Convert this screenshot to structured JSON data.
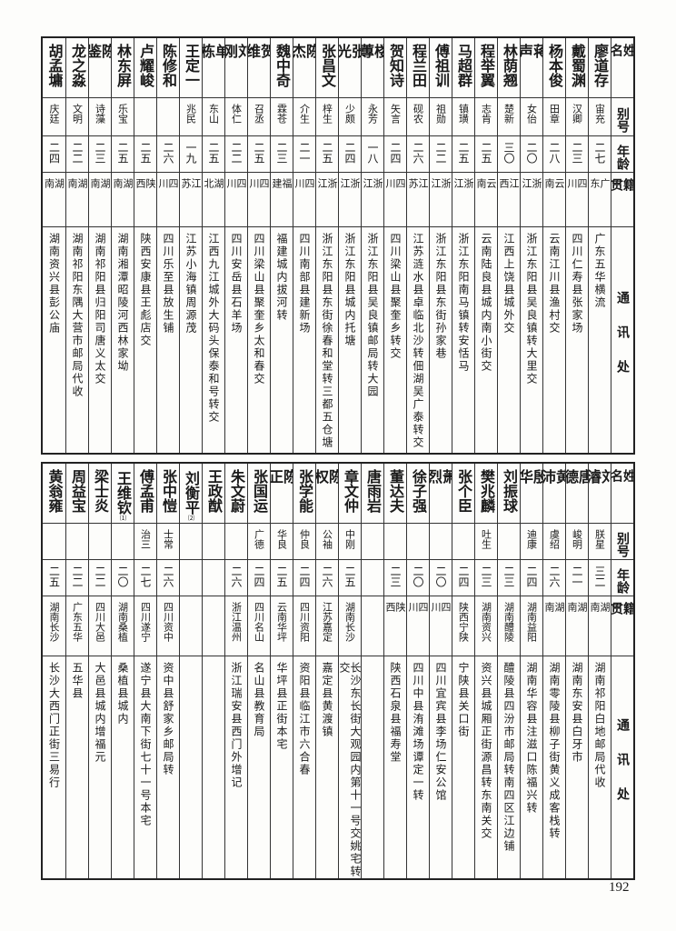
{
  "header": {
    "name": "姓名",
    "alias": "别号",
    "age": "年龄",
    "origin": "籍贯",
    "address": "通讯处"
  },
  "top_table": [
    {
      "name": "廖道存",
      "alias": "宙充",
      "age": "二七",
      "origin": "广东",
      "address": "广东五华横流"
    },
    {
      "name": "戴蜀渊",
      "alias": "汉卿",
      "age": "二三",
      "origin": "四川",
      "address": "四川仁寿县张家场"
    },
    {
      "name": "杨本俊",
      "alias": "田章",
      "age": "二八",
      "origin": "云南",
      "address": "云南江川县渔村交"
    },
    {
      "name": "蒋声",
      "alias": "女佁",
      "age": "二〇",
      "origin": "浙江",
      "address": "浙江东阳县吴良镇转大里交"
    },
    {
      "name": "林荫翘",
      "alias": "楚新",
      "age": "三〇",
      "origin": "江西",
      "address": "江西上饶县城外交"
    },
    {
      "name": "程举翼",
      "alias": "志肯",
      "age": "二五",
      "origin": "云南",
      "address": "云南陆良县城内南小街交"
    },
    {
      "name": "马超群",
      "alias": "镇璜",
      "age": "二五",
      "origin": "浙江",
      "address": "浙江东阳南马镇转安恬马"
    },
    {
      "name": "傅祖训",
      "alias": "祖勋",
      "age": "二二",
      "origin": "浙江",
      "address": "浙江东阳县东街孙家巷"
    },
    {
      "name": "程兰田",
      "alias": "砚农",
      "age": "二六",
      "origin": "江苏",
      "address": "江苏涟水县卓临北沙转佃湖吴广泰转交"
    },
    {
      "name": "贺知诗",
      "alias": "矢言",
      "age": "二四",
      "origin": "四川",
      "address": "四川梁山县聚奎乡转交"
    },
    {
      "name": "楼蓴",
      "alias": "永芳",
      "age": "一八",
      "origin": "浙江",
      "address": "浙江东阳县吴良镇邮局转大园"
    },
    {
      "name": "张光",
      "alias": "少颇",
      "age": "二四",
      "origin": "浙江",
      "address": "浙江东阳县城内托塘"
    },
    {
      "name": "张昌文",
      "alias": "梓生",
      "age": "二五",
      "origin": "浙江",
      "address": "浙江东阳县东街徐春和堂转三都五仓塘"
    },
    {
      "name": "陈杰",
      "alias": "介生",
      "age": "二一",
      "origin": "四川",
      "address": "四川南部县建新场"
    },
    {
      "name": "魏中奇",
      "alias": "霖苍",
      "age": "二三",
      "origin": "福建",
      "address": "福建城内拔河转"
    },
    {
      "name": "贺维",
      "alias": "召丞",
      "age": "二五",
      "origin": "四川",
      "address": "四川梁山县聚奎乡太和春交"
    },
    {
      "name": "刘刚",
      "alias": "体仁",
      "age": "二二",
      "origin": "四川",
      "address": "四川安岳县石羊场"
    },
    {
      "name": "单栋",
      "alias": "东山",
      "age": "二五",
      "origin": "湖北",
      "address": "江西九江城外大码头保泰和号转交"
    },
    {
      "name": "王定一",
      "alias": "兆民",
      "age": "一九",
      "origin": "江苏",
      "address": "江苏小海镇周源茂"
    },
    {
      "name": "陈修和",
      "alias": "",
      "age": "二六",
      "origin": "四川",
      "address": "四川乐至县放生铺"
    },
    {
      "name": "卢耀峻",
      "alias": "",
      "age": "二五",
      "origin": "陕西",
      "address": "陕西安康县王彪店交"
    },
    {
      "name": "林东屏",
      "alias": "乐宝",
      "age": "二五",
      "origin": "湖南",
      "address": "湖南湘潭昭陵河西林家坳"
    },
    {
      "name": "陈鉴",
      "alias": "诗藻",
      "age": "二三",
      "origin": "湖南",
      "address": "湖南祁阳县归阳司唐义太交"
    },
    {
      "name": "龙之淼",
      "alias": "文明",
      "age": "二二",
      "origin": "湖南",
      "address": "湖南祁阳东隅大营市邮局代收"
    },
    {
      "name": "胡孟墉",
      "alias": "庆廷",
      "age": "二四",
      "origin": "湖南",
      "address": "湖南资兴县彭公庙"
    }
  ],
  "bottom_table": [
    {
      "name": "刘濬",
      "alias": "朕星",
      "age": "三二",
      "origin": "湖南",
      "address": "湖南祁阳白地邮局代收"
    },
    {
      "name": "唐德",
      "alias": "峻明",
      "age": "二一",
      "origin": "湖南",
      "address": "湖南东安县白牙市"
    },
    {
      "name": "黄沛",
      "alias": "虞绍",
      "age": "二六",
      "origin": "湖南",
      "address": "湖南零陵县柳子街黄义成客栈转"
    },
    {
      "name": "殷华",
      "alias": "迪康",
      "age": "二四",
      "origin": "湖南益阳",
      "address": "湖南华容县注滋口陈福兴转"
    },
    {
      "name": "刘振球",
      "alias": "",
      "age": "二三",
      "origin": "湖南醴陵",
      "address": "醴陵县四汾市邮局转南四区江边铺"
    },
    {
      "name": "樊兆麟",
      "alias": "吐生",
      "age": "二三",
      "origin": "湖南资兴",
      "address": "资兴县城厢正街源昌转东南关交"
    },
    {
      "name": "张个臣",
      "alias": "",
      "age": "二四",
      "origin": "陕西宁陕",
      "address": "宁陕县关口街"
    },
    {
      "name": "萧烈",
      "alias": "",
      "age": "二〇",
      "origin": "四川",
      "address": "四川宜宾县李场仁安公馆"
    },
    {
      "name": "徐子强",
      "alias": "",
      "age": "二〇",
      "origin": "四川",
      "address": "四川中县洧滩场谭定一转"
    },
    {
      "name": "董达夫",
      "alias": "",
      "age": "二三",
      "origin": "陕西",
      "address": "陕西石泉县福寿堂"
    },
    {
      "name": "唐雨岩",
      "alias": "",
      "age": "",
      "origin": "",
      "address": ""
    },
    {
      "name": "章文仲",
      "alias": "中刚",
      "age": "二五",
      "origin": "湖南长沙",
      "address": "长沙东长街大观园内第十一号交姚宅转交"
    },
    {
      "name": "陈权",
      "alias": "公袖",
      "age": "二六",
      "origin": "江苏嘉定",
      "address": "嘉定县黄渡镇"
    },
    {
      "name": "张学能",
      "alias": "仲良",
      "age": "二四",
      "origin": "四川资阳",
      "address": "资阳县临江市六合春"
    },
    {
      "name": "陈正",
      "alias": "华良",
      "age": "二五",
      "origin": "云南华坪",
      "address": "华坪县正街本宅"
    },
    {
      "name": "张国运",
      "alias": "广德",
      "age": "二四",
      "origin": "四川名山",
      "address": "名山县教育局"
    },
    {
      "name": "朱文蔚",
      "alias": "",
      "age": "二六",
      "origin": "浙江温州",
      "address": "浙江瑞安县西门外增记"
    },
    {
      "name": "王政猷",
      "alias": "",
      "age": "",
      "origin": "",
      "address": ""
    },
    {
      "name": "刘衡平",
      "note": "⑵",
      "alias": "",
      "age": "",
      "origin": "",
      "address": ""
    },
    {
      "name": "张中愷",
      "alias": "士常",
      "age": "二六",
      "origin": "四川资中",
      "address": "资中县舒家乡邮局转"
    },
    {
      "name": "傅孟甫",
      "alias": "治三",
      "age": "二七",
      "origin": "四川遂宁",
      "address": "遂宁县大南下街七十一号本宅"
    },
    {
      "name": "王维钦",
      "note": "⑴",
      "alias": "",
      "age": "二〇",
      "origin": "湖南桑植",
      "address": "桑植县城内"
    },
    {
      "name": "梁士炎",
      "alias": "",
      "age": "二二",
      "origin": "四川大邑",
      "address": "大邑县城内增福元"
    },
    {
      "name": "周益宝",
      "alias": "",
      "age": "二二",
      "origin": "广东五华",
      "address": "五华县"
    },
    {
      "name": "黄翁雍",
      "alias": "",
      "age": "二五",
      "origin": "湖南长沙",
      "address": "长沙大西门正街三易行"
    }
  ],
  "page_number": "192"
}
